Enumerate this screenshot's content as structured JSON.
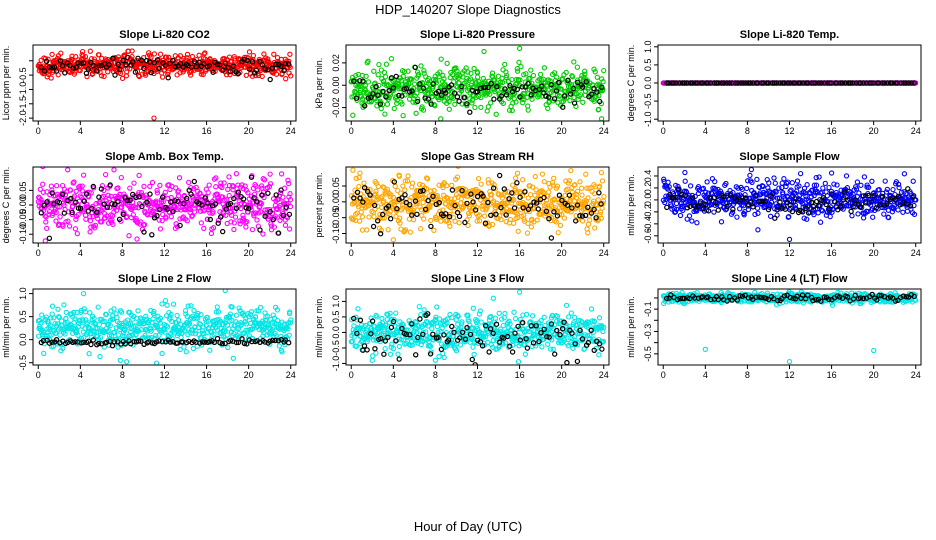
{
  "title": "HDP_140207  Slope Diagnostics",
  "xlabel": "Hour of Day (UTC)",
  "chart_data": [
    {
      "type": "scatter",
      "title": "Slope Li-820 CO2",
      "ylabel": "Licor ppm per min.",
      "color": "#ff0000",
      "xlim": [
        -0.5,
        24.5
      ],
      "ylim": [
        -2.1,
        0.55
      ],
      "yticks": [
        -2.0,
        -1.5,
        -1.0,
        -0.5,
        0.0
      ],
      "ytick_labels": [
        "-2.0",
        "-1.5",
        "-1.0",
        "-0.5",
        ""
      ],
      "center": -0.15,
      "spread": 0.18,
      "black_center": -0.2,
      "black_spread": 0.15,
      "outliers": [
        [
          9.6,
          -0.55
        ],
        [
          10.2,
          -0.5
        ],
        [
          11.0,
          -2.0
        ]
      ]
    },
    {
      "type": "scatter",
      "title": "Slope Li-820 Pressure",
      "ylabel": "kPa per min.",
      "color": "#00cc00",
      "xlim": [
        -0.5,
        24.5
      ],
      "ylim": [
        -0.032,
        0.036
      ],
      "yticks": [
        -0.02,
        0.0,
        0.02
      ],
      "ytick_labels": [
        "-0.02",
        "0.00",
        "0.02"
      ],
      "center": -0.003,
      "spread": 0.009,
      "black_center": -0.005,
      "black_spread": 0.006,
      "outliers": [
        [
          16.0,
          0.033
        ],
        [
          12.0,
          0.011
        ],
        [
          23.8,
          -0.03
        ],
        [
          8.5,
          -0.03
        ]
      ]
    },
    {
      "type": "scatter",
      "title": "Slope Li-820 Temp.",
      "ylabel": "degrees C per min.",
      "color": "#cc00cc",
      "xlim": [
        -0.5,
        24.5
      ],
      "ylim": [
        -1.05,
        1.05
      ],
      "yticks": [
        -1.0,
        -0.5,
        0.0,
        0.5,
        1.0
      ],
      "ytick_labels": [
        "-1.0",
        "-0.5",
        "0.0",
        "0.5",
        "1.0"
      ],
      "center": 0.0,
      "spread": 0.0,
      "black_center": 0.0,
      "black_spread": 0.0,
      "outliers": []
    },
    {
      "type": "scatter",
      "title": "Slope Amb. Box Temp.",
      "ylabel": "degrees C per min.",
      "color": "#ff00ff",
      "xlim": [
        -0.5,
        24.5
      ],
      "ylim": [
        -0.13,
        0.13
      ],
      "yticks": [
        -0.1,
        -0.05,
        0.0,
        0.05
      ],
      "ytick_labels": [
        "-0.10",
        "-0.05",
        "0.00",
        "0.05"
      ],
      "center": 0.0,
      "spread": 0.045,
      "black_center": 0.0,
      "black_spread": 0.04,
      "outliers": []
    },
    {
      "type": "scatter",
      "title": "Slope Gas Stream RH",
      "ylabel": "percent per min.",
      "color": "#ffa500",
      "xlim": [
        -0.5,
        24.5
      ],
      "ylim": [
        -0.13,
        0.11
      ],
      "yticks": [
        -0.1,
        -0.05,
        0.0,
        0.05
      ],
      "ytick_labels": [
        "-0.10",
        "-0.05",
        "0.00",
        "0.05"
      ],
      "center": -0.005,
      "spread": 0.038,
      "black_center": -0.01,
      "black_spread": 0.035,
      "outliers": [
        [
          4.0,
          -0.12
        ],
        [
          15.8,
          0.09
        ],
        [
          16.3,
          0.07
        ]
      ]
    },
    {
      "type": "scatter",
      "title": "Slope Sample Flow",
      "ylabel": "ml/min per min.",
      "color": "#0000ff",
      "xlim": [
        -0.5,
        24.5
      ],
      "ylim": [
        -0.72,
        0.55
      ],
      "yticks": [
        -0.6,
        -0.4,
        -0.2,
        0.0,
        0.2,
        0.4
      ],
      "ytick_labels": [
        "-0.6",
        "-0.4",
        "-0.2",
        "0.0",
        "0.2",
        "0.4"
      ],
      "center": 0.02,
      "spread": 0.15,
      "black_center": -0.05,
      "black_spread": 0.1,
      "outliers": [
        [
          12.0,
          -0.66
        ],
        [
          16.0,
          0.45
        ],
        [
          3.2,
          -0.38
        ],
        [
          9.0,
          -0.5
        ]
      ]
    },
    {
      "type": "scatter",
      "title": "Slope Line 2 Flow",
      "ylabel": "ml/min per min.",
      "color": "#00e5e5",
      "xlim": [
        -0.5,
        24.5
      ],
      "ylim": [
        -0.55,
        1.1
      ],
      "yticks": [
        -0.5,
        0.0,
        0.5,
        1.0
      ],
      "ytick_labels": [
        "-0.5",
        "0.0",
        "0.5",
        "1.0"
      ],
      "center": 0.25,
      "spread": 0.22,
      "black_center": -0.05,
      "black_spread": 0.03,
      "outliers": [
        [
          4.3,
          1.0
        ],
        [
          7.8,
          -0.45
        ],
        [
          8.4,
          -0.48
        ]
      ]
    },
    {
      "type": "scatter",
      "title": "Slope Line 3 Flow",
      "ylabel": "ml/min per min.",
      "color": "#00e5e5",
      "xlim": [
        -0.5,
        24.5
      ],
      "ylim": [
        -1.05,
        1.4
      ],
      "yticks": [
        -1.0,
        -0.5,
        0.0,
        0.5,
        1.0
      ],
      "ytick_labels": [
        "-1.0",
        "-0.5",
        "0.0",
        "0.5",
        "1.0"
      ],
      "center": 0.0,
      "spread": 0.3,
      "black_center": -0.1,
      "black_spread": 0.35,
      "outliers": [
        [
          16.0,
          1.3
        ],
        [
          13.5,
          1.1
        ],
        [
          2.0,
          -0.9
        ],
        [
          8.0,
          -0.9
        ]
      ]
    },
    {
      "type": "scatter",
      "title": "Slope Line 4 (LT) Flow",
      "ylabel": "ml/min per min.",
      "color": "#00e5e5",
      "xlim": [
        -0.5,
        24.5
      ],
      "ylim": [
        -0.6,
        0.08
      ],
      "yticks": [
        -0.5,
        -0.4,
        -0.3,
        -0.2,
        -0.1,
        0.0
      ],
      "ytick_labels": [
        "-0.5",
        "",
        "-0.3",
        "",
        "-0.1",
        ""
      ],
      "center": 0.0,
      "spread": 0.02,
      "black_center": 0.0,
      "black_spread": 0.015,
      "outliers": [
        [
          4.0,
          -0.46
        ],
        [
          12.0,
          -0.57
        ],
        [
          20.0,
          -0.47
        ]
      ]
    }
  ],
  "xticks": [
    0,
    4,
    8,
    12,
    16,
    20,
    24
  ],
  "xtick_labels": [
    "0",
    "4",
    "8",
    "12",
    "16",
    "20",
    "24"
  ]
}
